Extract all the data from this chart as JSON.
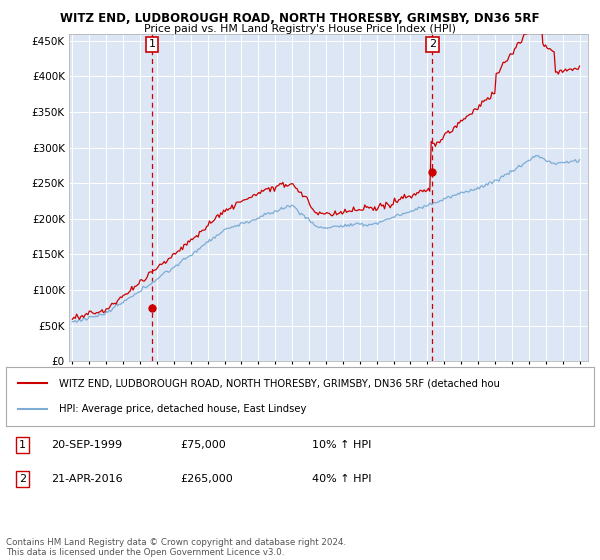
{
  "title1": "WITZ END, LUDBOROUGH ROAD, NORTH THORESBY, GRIMSBY, DN36 5RF",
  "title2": "Price paid vs. HM Land Registry's House Price Index (HPI)",
  "background_color": "#dce6f5",
  "red_line_color": "#cc0000",
  "blue_line_color": "#7dadd4",
  "ylim": [
    0,
    460000
  ],
  "yticks": [
    0,
    50000,
    100000,
    150000,
    200000,
    250000,
    300000,
    350000,
    400000,
    450000
  ],
  "xlim_start": 1994.8,
  "xlim_end": 2025.5,
  "marker1_x": 1999.72,
  "marker1_y": 75000,
  "marker2_x": 2016.3,
  "marker2_y": 265000,
  "marker1_label": "1",
  "marker2_label": "2",
  "marker1_date": "20-SEP-1999",
  "marker1_price": "£75,000",
  "marker1_hpi": "10% ↑ HPI",
  "marker2_date": "21-APR-2016",
  "marker2_price": "£265,000",
  "marker2_hpi": "40% ↑ HPI",
  "legend_line1": "WITZ END, LUDBOROUGH ROAD, NORTH THORESBY, GRIMSBY, DN36 5RF (detached hou",
  "legend_line2": "HPI: Average price, detached house, East Lindsey",
  "footnote": "Contains HM Land Registry data © Crown copyright and database right 2024.\nThis data is licensed under the Open Government Licence v3.0."
}
